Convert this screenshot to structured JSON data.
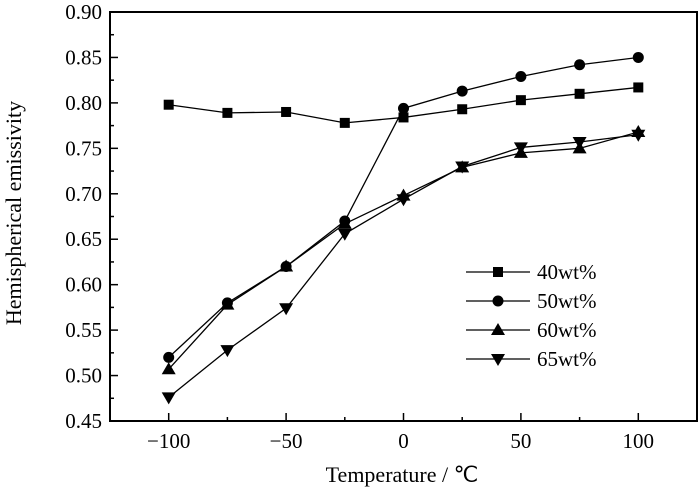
{
  "chart_data": {
    "type": "line",
    "title": "",
    "xlabel": "Temperature / ℃",
    "ylabel": "Hemispherical emissivity",
    "xlim": [
      -125,
      125
    ],
    "ylim": [
      0.45,
      0.9
    ],
    "xticks": [
      -100,
      -50,
      0,
      50,
      100
    ],
    "xtick_labels": [
      "−100",
      "−50",
      "0",
      "50",
      "100"
    ],
    "yticks": [
      0.45,
      0.5,
      0.55,
      0.6,
      0.65,
      0.7,
      0.75,
      0.8,
      0.85,
      0.9
    ],
    "ytick_labels": [
      "0.45",
      "0.50",
      "0.55",
      "0.60",
      "0.65",
      "0.70",
      "0.75",
      "0.80",
      "0.85",
      "0.90"
    ],
    "grid": false,
    "legend_position": "lower-right",
    "series": [
      {
        "name": "40wt%",
        "marker": "square",
        "x": [
          -100,
          -75,
          -50,
          -25,
          0,
          25,
          50,
          75,
          100
        ],
        "y": [
          0.798,
          0.789,
          0.79,
          0.778,
          0.784,
          0.793,
          0.803,
          0.81,
          0.817
        ]
      },
      {
        "name": "50wt%",
        "marker": "circle",
        "x": [
          -100,
          -75,
          -50,
          -25,
          0,
          25,
          50,
          75,
          100
        ],
        "y": [
          0.52,
          0.58,
          0.62,
          0.67,
          0.794,
          0.813,
          0.829,
          0.842,
          0.85
        ]
      },
      {
        "name": "60wt%",
        "marker": "triangle-up",
        "x": [
          -100,
          -75,
          -50,
          -25,
          0,
          25,
          50,
          75,
          100
        ],
        "y": [
          0.507,
          0.578,
          0.62,
          0.667,
          0.698,
          0.729,
          0.745,
          0.75,
          0.768
        ]
      },
      {
        "name": "65wt%",
        "marker": "triangle-down",
        "x": [
          -100,
          -75,
          -50,
          -25,
          0,
          25,
          50,
          75,
          100
        ],
        "y": [
          0.476,
          0.528,
          0.574,
          0.656,
          0.694,
          0.73,
          0.751,
          0.757,
          0.765
        ]
      }
    ]
  }
}
